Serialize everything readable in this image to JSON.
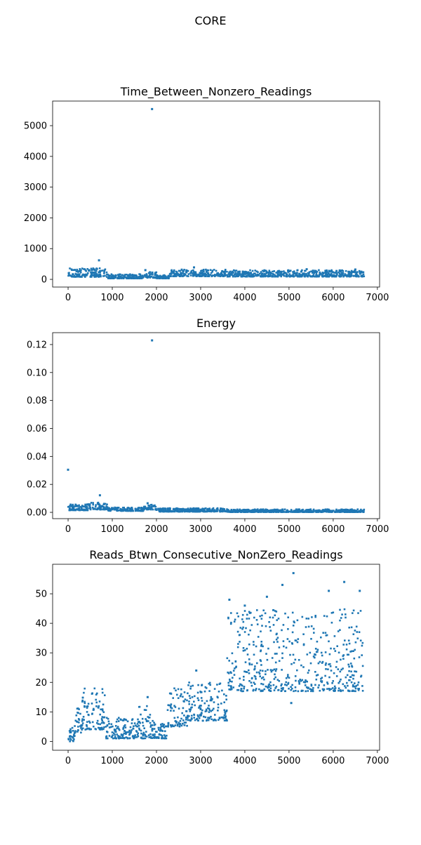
{
  "figure": {
    "title": "CORE"
  },
  "colors": {
    "marker": "#1f77b4",
    "axes": "#000000",
    "background": "#ffffff"
  },
  "chart_data": [
    {
      "type": "scatter",
      "title": "Time_Between_Nonzero_Readings",
      "xlabel": "",
      "ylabel": "",
      "xlim": [
        -350,
        7050
      ],
      "ylim": [
        -250,
        5800
      ],
      "xticks": [
        0,
        1000,
        2000,
        3000,
        4000,
        5000,
        6000,
        7000
      ],
      "xtick_labels": [
        "0",
        "1000",
        "2000",
        "3000",
        "4000",
        "5000",
        "6000",
        "7000"
      ],
      "yticks": [
        0,
        1000,
        2000,
        3000,
        4000,
        5000
      ],
      "ytick_labels": [
        "0",
        "1000",
        "2000",
        "3000",
        "4000",
        "5000"
      ],
      "grid": false,
      "points": [
        [
          1900,
          5540
        ],
        [
          700,
          620
        ],
        [
          1750,
          300
        ],
        [
          2850,
          390
        ],
        [
          5400,
          330
        ],
        [
          6500,
          320
        ]
      ],
      "bands": [
        {
          "x": [
            0,
            900
          ],
          "low": 80,
          "high": 360
        },
        {
          "x": [
            900,
            1700
          ],
          "low": 30,
          "high": 170
        },
        {
          "x": [
            1700,
            2000
          ],
          "low": 50,
          "high": 240
        },
        {
          "x": [
            2000,
            2300
          ],
          "low": 30,
          "high": 150
        },
        {
          "x": [
            2300,
            3600
          ],
          "low": 100,
          "high": 330
        },
        {
          "x": [
            3600,
            6700
          ],
          "low": 90,
          "high": 300
        }
      ]
    },
    {
      "type": "scatter",
      "title": "Energy",
      "xlabel": "",
      "ylabel": "",
      "xlim": [
        -350,
        7050
      ],
      "ylim": [
        -0.0045,
        0.1285
      ],
      "xticks": [
        0,
        1000,
        2000,
        3000,
        4000,
        5000,
        6000,
        7000
      ],
      "xtick_labels": [
        "0",
        "1000",
        "2000",
        "3000",
        "4000",
        "5000",
        "6000",
        "7000"
      ],
      "yticks": [
        0,
        0.02,
        0.04,
        0.06,
        0.08,
        0.1,
        0.12
      ],
      "ytick_labels": [
        "0.00",
        "0.02",
        "0.04",
        "0.06",
        "0.08",
        "0.10",
        "0.12"
      ],
      "grid": false,
      "points": [
        [
          1900,
          0.123
        ],
        [
          0,
          0.0305
        ],
        [
          720,
          0.0122
        ],
        [
          1800,
          0.0065
        ]
      ],
      "bands": [
        {
          "x": [
            0,
            450
          ],
          "low": 0.0015,
          "high": 0.0058
        },
        {
          "x": [
            450,
            900
          ],
          "low": 0.002,
          "high": 0.007
        },
        {
          "x": [
            900,
            1700
          ],
          "low": 0.001,
          "high": 0.0035
        },
        {
          "x": [
            1700,
            2000
          ],
          "low": 0.002,
          "high": 0.0055
        },
        {
          "x": [
            2000,
            3600
          ],
          "low": 0.0005,
          "high": 0.003
        },
        {
          "x": [
            3600,
            6700
          ],
          "low": 0.0002,
          "high": 0.0022
        }
      ]
    },
    {
      "type": "scatter",
      "title": "Reads_Btwn_Consecutive_NonZero_Readings",
      "xlabel": "",
      "ylabel": "",
      "xlim": [
        -350,
        7050
      ],
      "ylim": [
        -3,
        60
      ],
      "xticks": [
        0,
        1000,
        2000,
        3000,
        4000,
        5000,
        6000,
        7000
      ],
      "xtick_labels": [
        "0",
        "1000",
        "2000",
        "3000",
        "4000",
        "5000",
        "6000",
        "7000"
      ],
      "yticks": [
        0,
        10,
        20,
        30,
        40,
        50
      ],
      "ytick_labels": [
        "0",
        "10",
        "20",
        "30",
        "40",
        "50"
      ],
      "grid": false,
      "points": [
        [
          5100,
          57
        ],
        [
          4850,
          53
        ],
        [
          6250,
          54
        ],
        [
          5050,
          13
        ],
        [
          4500,
          49
        ],
        [
          3650,
          48
        ],
        [
          6600,
          51
        ],
        [
          2900,
          24
        ],
        [
          1800,
          15
        ],
        [
          5900,
          51
        ],
        [
          4000,
          46
        ]
      ],
      "bands": [
        {
          "x": [
            0,
            150
          ],
          "low": 0,
          "high": 5
        },
        {
          "x": [
            150,
            300
          ],
          "low": 3,
          "high": 12
        },
        {
          "x": [
            300,
            850
          ],
          "low": 4,
          "high": 18
        },
        {
          "x": [
            850,
            1600
          ],
          "low": 1,
          "high": 8
        },
        {
          "x": [
            1600,
            1950
          ],
          "low": 1,
          "high": 12
        },
        {
          "x": [
            1950,
            2250
          ],
          "low": 1,
          "high": 6
        },
        {
          "x": [
            2250,
            2700
          ],
          "low": 5,
          "high": 18
        },
        {
          "x": [
            2700,
            3600
          ],
          "low": 7,
          "high": 20
        },
        {
          "x": [
            3600,
            6700
          ],
          "low": 17,
          "high": 45
        }
      ]
    }
  ]
}
